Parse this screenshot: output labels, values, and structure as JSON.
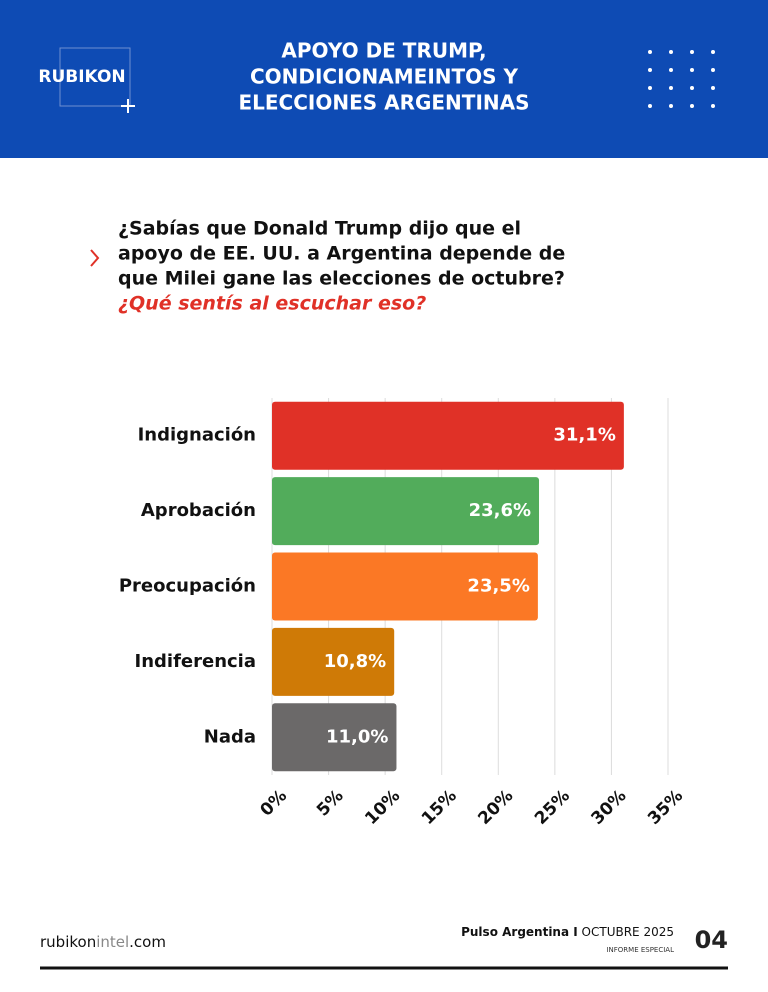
{
  "header": {
    "logo": "RUBIKON",
    "title_lines": [
      "APOYO DE TRUMP,",
      "CONDICIONAMEINTOS Y",
      "ELECCIONES ARGENTINAS"
    ]
  },
  "question": {
    "lines": [
      "¿Sabías que Donald Trump dijo que el",
      "apoyo de EE. UU. a Argentina depende de",
      "que Milei gane las elecciones de octubre?"
    ],
    "highlight": "¿Qué sentís al escuchar eso?"
  },
  "chart_data": {
    "type": "barh",
    "categories": [
      "Indignación",
      "Aprobación",
      "Preocupación",
      "Indiferencia",
      "Nada"
    ],
    "values": [
      31.1,
      23.6,
      23.5,
      10.8,
      11.0
    ],
    "value_labels": [
      "31,1%",
      "23,6%",
      "23,5%",
      "10,8%",
      "11,0%"
    ],
    "colors": [
      "#e03127",
      "#52ac5b",
      "#fb7825",
      "#cf7a06",
      "#6b6969"
    ],
    "xlim": [
      0,
      35
    ],
    "xticks": [
      {
        "value": 0,
        "label": "0%"
      },
      {
        "value": 5,
        "label": "5%"
      },
      {
        "value": 10,
        "label": "10%"
      },
      {
        "value": 15,
        "label": "15%"
      },
      {
        "value": 20,
        "label": "20%"
      },
      {
        "value": 25,
        "label": "25%"
      },
      {
        "value": 30,
        "label": "30%"
      },
      {
        "value": 35,
        "label": "35%"
      }
    ],
    "grid": true
  },
  "footer": {
    "site_parts": [
      "rubikon",
      "intel",
      ".com"
    ],
    "publication": "Pulso Argentina I",
    "date": "OCTUBRE 2025",
    "section": "INFORME ESPECIAL",
    "page": "04"
  }
}
